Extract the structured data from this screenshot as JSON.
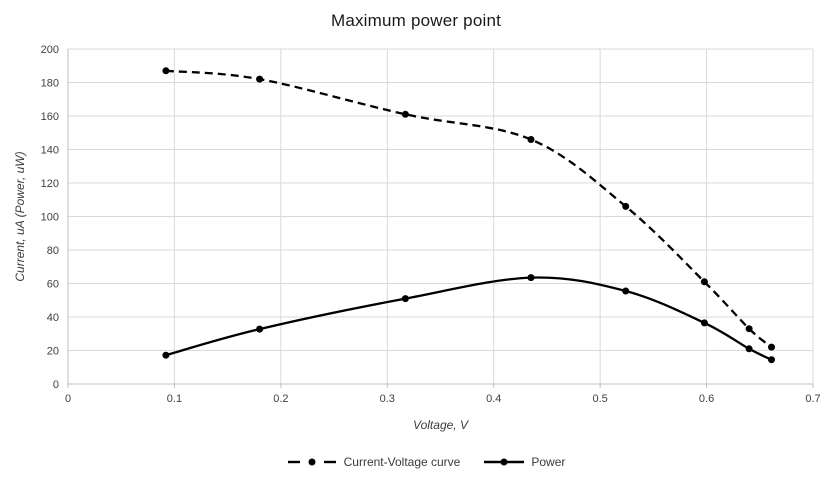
{
  "page": {
    "background": "#ffffff"
  },
  "chart_data": {
    "type": "line",
    "title": "Maximum power point",
    "xlabel": "Voltage, V",
    "ylabel": "Current, uA (Power, uW)",
    "xlim": [
      0,
      0.7
    ],
    "ylim": [
      0,
      200
    ],
    "xticks": [
      "0",
      "0.1",
      "0.2",
      "0.3",
      "0.4",
      "0.5",
      "0.6",
      "0.7"
    ],
    "yticks": [
      "0",
      "20",
      "40",
      "60",
      "80",
      "100",
      "120",
      "140",
      "160",
      "180",
      "200"
    ],
    "grid": true,
    "legend_position": "bottom",
    "smooth_lines": true,
    "x": [
      0.092,
      0.18,
      0.317,
      0.435,
      0.524,
      0.598,
      0.64,
      0.661
    ],
    "series": [
      {
        "name": "Current-Voltage curve",
        "style": "dashed",
        "marker": "circle",
        "color": "#000000",
        "values": [
          187,
          182,
          161,
          146,
          106,
          61,
          33,
          22
        ]
      },
      {
        "name": "Power",
        "style": "solid",
        "marker": "circle",
        "color": "#000000",
        "values": [
          17.2,
          32.8,
          51,
          63.5,
          55.5,
          36.5,
          21,
          14.5
        ]
      }
    ],
    "colors": {
      "grid": "#d9d9d9",
      "axis": "#bfbfbf",
      "tick_text": "#404040",
      "title_text": "#1a1a1a",
      "series": "#000000"
    }
  }
}
